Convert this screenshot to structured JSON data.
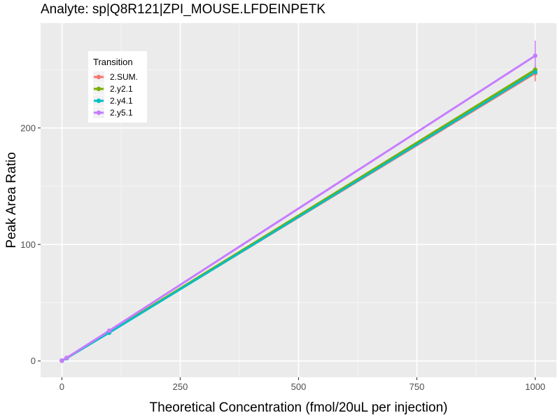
{
  "chart_data": {
    "type": "line",
    "title": "Analyte: sp|Q8R121|ZPI_MOUSE.LFDEINPETK",
    "xlabel": "Theoretical Concentration (fmol/20uL per injection)",
    "ylabel": "Peak Area Ratio",
    "xlim": [
      -45,
      1045
    ],
    "ylim": [
      -14,
      290
    ],
    "x_ticks": [
      0,
      250,
      500,
      750,
      1000
    ],
    "y_ticks": [
      0,
      100,
      200
    ],
    "grid": true,
    "legend": {
      "title": "Transition",
      "position": "top-left"
    },
    "series": [
      {
        "name": "2.SUM.",
        "color": "#F8766D",
        "x": [
          0,
          10,
          100,
          1000
        ],
        "y": [
          0.3,
          2.5,
          24.5,
          247
        ],
        "error": [
          0,
          0,
          0,
          7
        ]
      },
      {
        "name": "2.y2.1",
        "color": "#7CAE00",
        "x": [
          0,
          10,
          100,
          1000
        ],
        "y": [
          0.3,
          2.5,
          24.8,
          250
        ],
        "error": [
          0,
          0,
          0,
          0
        ]
      },
      {
        "name": "2.y4.1",
        "color": "#00BFC4",
        "x": [
          0,
          10,
          100,
          1000
        ],
        "y": [
          0.3,
          2.4,
          24.3,
          248
        ],
        "error": [
          0,
          0,
          0,
          0
        ]
      },
      {
        "name": "2.y5.1",
        "color": "#C77CFF",
        "x": [
          0,
          10,
          100,
          1000
        ],
        "y": [
          0.3,
          2.7,
          26,
          262
        ],
        "error": [
          0,
          0,
          0,
          13
        ]
      }
    ]
  }
}
